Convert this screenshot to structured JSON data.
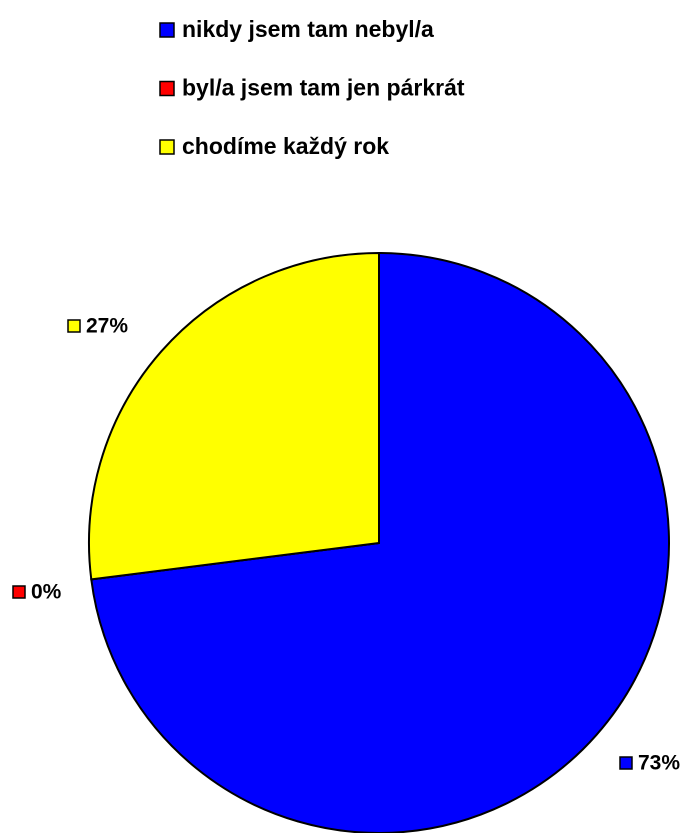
{
  "chart_data": {
    "type": "pie",
    "categories": [
      "nikdy jsem tam nebyl/a",
      "byl/a jsem tam jen párkrát",
      "chodíme každý rok"
    ],
    "values": [
      73,
      0,
      27
    ],
    "value_labels": [
      "73%",
      "0%",
      "27%"
    ],
    "colors": [
      "#0000ff",
      "#ff0000",
      "#ffff00"
    ],
    "legend": "top"
  }
}
